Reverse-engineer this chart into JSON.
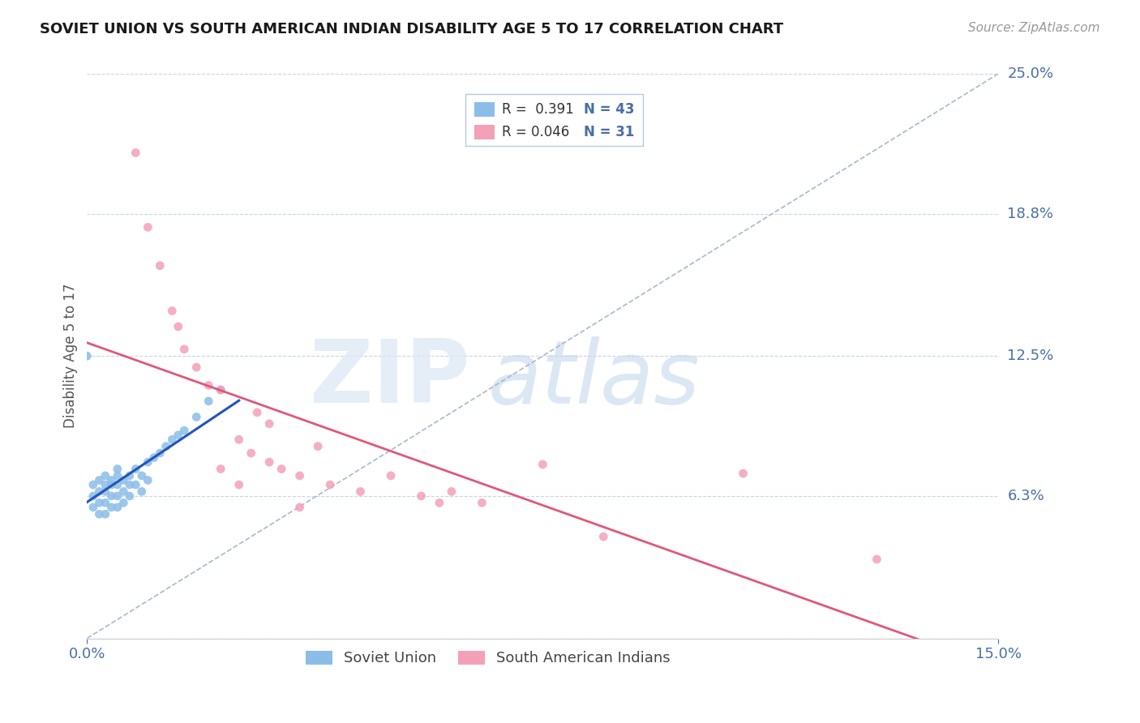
{
  "title": "SOVIET UNION VS SOUTH AMERICAN INDIAN DISABILITY AGE 5 TO 17 CORRELATION CHART",
  "source": "Source: ZipAtlas.com",
  "ylabel": "Disability Age 5 to 17",
  "xlim": [
    0.0,
    0.15
  ],
  "ylim": [
    0.0,
    0.25
  ],
  "ytick_positions": [
    0.0,
    0.063,
    0.125,
    0.188,
    0.25
  ],
  "ytick_labels": [
    "",
    "6.3%",
    "12.5%",
    "18.8%",
    "25.0%"
  ],
  "soviet_color": "#8bbde8",
  "south_am_color": "#f4a0b8",
  "soviet_line_color": "#2255bb",
  "south_am_line_color": "#e05878",
  "diagonal_color": "#aab8cc",
  "background_color": "#ffffff",
  "soviet_points_x": [
    0.001,
    0.001,
    0.001,
    0.002,
    0.002,
    0.002,
    0.002,
    0.003,
    0.003,
    0.003,
    0.003,
    0.003,
    0.004,
    0.004,
    0.004,
    0.004,
    0.005,
    0.005,
    0.005,
    0.005,
    0.005,
    0.006,
    0.006,
    0.006,
    0.007,
    0.007,
    0.007,
    0.008,
    0.008,
    0.009,
    0.009,
    0.01,
    0.01,
    0.011,
    0.012,
    0.013,
    0.014,
    0.015,
    0.016,
    0.018,
    0.02,
    0.022,
    0.0
  ],
  "soviet_points_y": [
    0.068,
    0.063,
    0.058,
    0.07,
    0.065,
    0.06,
    0.055,
    0.072,
    0.068,
    0.065,
    0.06,
    0.055,
    0.07,
    0.068,
    0.063,
    0.058,
    0.075,
    0.072,
    0.068,
    0.063,
    0.058,
    0.07,
    0.065,
    0.06,
    0.072,
    0.068,
    0.063,
    0.075,
    0.068,
    0.072,
    0.065,
    0.078,
    0.07,
    0.08,
    0.082,
    0.085,
    0.088,
    0.09,
    0.092,
    0.098,
    0.105,
    0.11,
    0.125
  ],
  "south_am_points_x": [
    0.008,
    0.01,
    0.012,
    0.014,
    0.015,
    0.016,
    0.018,
    0.02,
    0.022,
    0.025,
    0.027,
    0.03,
    0.032,
    0.035,
    0.038,
    0.04,
    0.045,
    0.05,
    0.055,
    0.058,
    0.06,
    0.065,
    0.028,
    0.03,
    0.022,
    0.025,
    0.035,
    0.075,
    0.085,
    0.108,
    0.13
  ],
  "south_am_points_y": [
    0.215,
    0.182,
    0.165,
    0.145,
    0.138,
    0.128,
    0.12,
    0.112,
    0.11,
    0.088,
    0.082,
    0.078,
    0.075,
    0.072,
    0.085,
    0.068,
    0.065,
    0.072,
    0.063,
    0.06,
    0.065,
    0.06,
    0.1,
    0.095,
    0.075,
    0.068,
    0.058,
    0.077,
    0.045,
    0.073,
    0.035
  ]
}
